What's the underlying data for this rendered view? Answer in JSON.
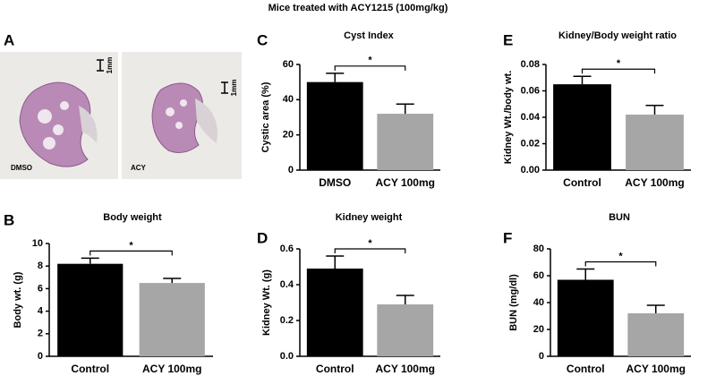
{
  "title": "Mice treated with ACY1215  (100mg/kg)",
  "panel_a": {
    "letter": "A",
    "images": [
      {
        "label": "DMSO",
        "scale": "1mm"
      },
      {
        "label": "ACY",
        "scale": "1mm"
      }
    ]
  },
  "chart_data": [
    {
      "letter": "C",
      "type": "bar",
      "title": "Cyst Index",
      "ylabel": "Cystic area (%)",
      "categories": [
        "DMSO",
        "ACY 100mg"
      ],
      "values": [
        50,
        32
      ],
      "errors": [
        5,
        5.5
      ],
      "colors": [
        "#000000",
        "#a6a6a6"
      ],
      "ylim": [
        0,
        60
      ],
      "yticks": [
        0,
        20,
        40,
        60
      ],
      "annotation": "*"
    },
    {
      "letter": "E",
      "type": "bar",
      "title": "Kidney/Body weight ratio",
      "ylabel": "Kidney Wt./body wt.",
      "categories": [
        "Control",
        "ACY 100mg"
      ],
      "values": [
        0.065,
        0.042
      ],
      "errors": [
        0.006,
        0.007
      ],
      "colors": [
        "#000000",
        "#a6a6a6"
      ],
      "ylim": [
        0,
        0.08
      ],
      "yticks": [
        {
          "value": 0,
          "label": "0.00"
        },
        {
          "value": 0.02,
          "label": "0.02"
        },
        {
          "value": 0.04,
          "label": "0.04"
        },
        {
          "value": 0.06,
          "label": "0.06"
        },
        {
          "value": 0.08,
          "label": "0.08"
        }
      ],
      "annotation": "*"
    },
    {
      "letter": "B",
      "type": "bar",
      "title": "Body weight",
      "ylabel": "Body wt. (g)",
      "categories": [
        "Control",
        "ACY 100mg"
      ],
      "values": [
        8.2,
        6.5
      ],
      "errors": [
        0.5,
        0.4
      ],
      "colors": [
        "#000000",
        "#a6a6a6"
      ],
      "ylim": [
        0,
        10
      ],
      "yticks": [
        0,
        2,
        4,
        6,
        8,
        10
      ],
      "annotation": "*"
    },
    {
      "letter": "D",
      "type": "bar",
      "title": "Kidney weight",
      "ylabel": "Kidney Wt. (g)",
      "categories": [
        "Control",
        "ACY 100mg"
      ],
      "values": [
        0.49,
        0.29
      ],
      "errors": [
        0.07,
        0.05
      ],
      "colors": [
        "#000000",
        "#a6a6a6"
      ],
      "ylim": [
        0,
        0.6
      ],
      "yticks": [
        {
          "value": 0,
          "label": "0.0"
        },
        0.2,
        0.4,
        0.6
      ],
      "annotation": "*"
    },
    {
      "letter": "F",
      "type": "bar",
      "title": "BUN",
      "ylabel": "BUN (mg/dl)",
      "categories": [
        "Control",
        "ACY 100mg"
      ],
      "values": [
        57,
        32
      ],
      "errors": [
        8,
        6
      ],
      "colors": [
        "#000000",
        "#a6a6a6"
      ],
      "ylim": [
        0,
        80
      ],
      "yticks": [
        0,
        20,
        40,
        60,
        80
      ],
      "annotation": "*"
    }
  ]
}
